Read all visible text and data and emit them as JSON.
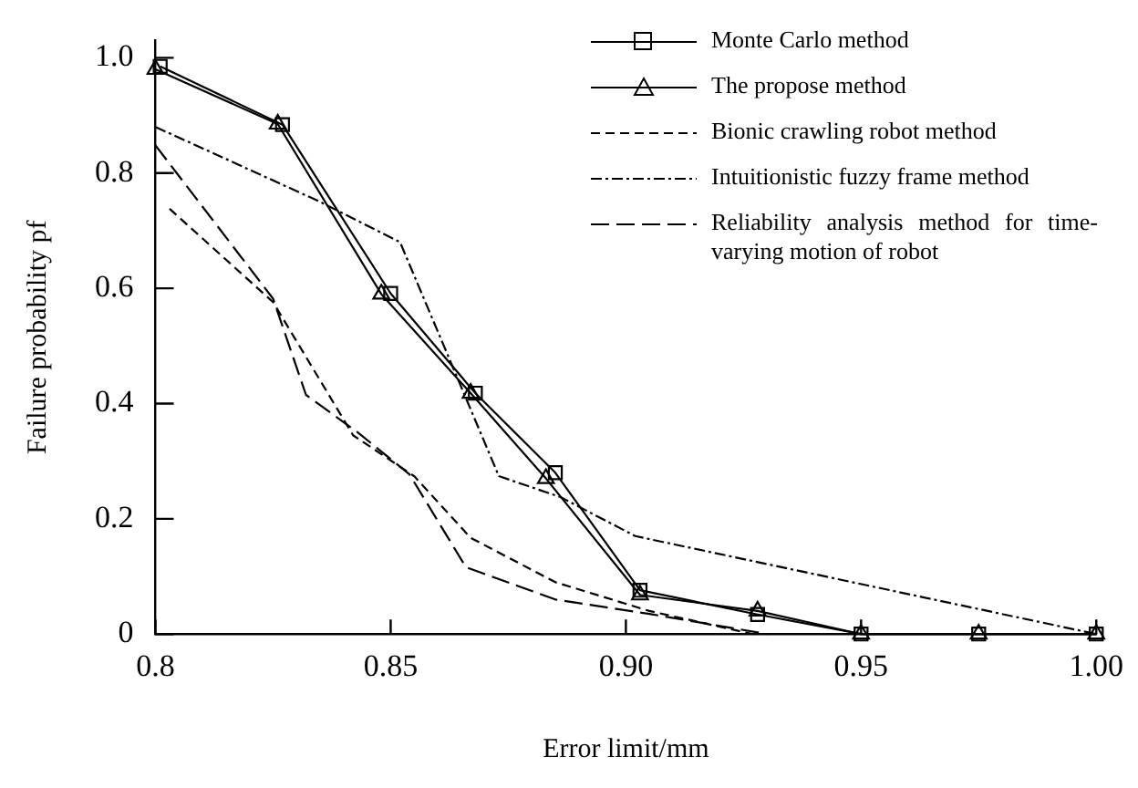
{
  "chart_data": {
    "type": "line",
    "xlabel": "Error limit/mm",
    "ylabel": "Failure probability pf",
    "xlim": [
      0.8,
      1.0
    ],
    "xticks": [
      0.8,
      0.85,
      {
        "value": 0.9,
        "label": "0.90"
      },
      0.95,
      {
        "value": 1.0,
        "label": "1.00"
      }
    ],
    "ylim": [
      0,
      1.03
    ],
    "yticks": [
      0,
      0.2,
      0.4,
      0.6,
      0.8,
      {
        "value": 1.0,
        "label": "1.0"
      }
    ],
    "grid": false,
    "legend": "top right",
    "series": [
      {
        "name": "Monte Carlo method",
        "color": "#000000",
        "marker": "square",
        "line_style": "solid",
        "x": [
          0.801,
          0.827,
          0.85,
          0.868,
          0.885,
          0.903,
          0.928,
          0.95,
          0.975,
          1.0
        ],
        "values": [
          0.985,
          0.884,
          0.591,
          0.418,
          0.28,
          0.076,
          0.034,
          0,
          0,
          0
        ]
      },
      {
        "name": "The propose method",
        "color": "#000000",
        "marker": "triangle",
        "line_style": "solid",
        "x": [
          0.8,
          0.826,
          0.848,
          0.867,
          0.883,
          0.903,
          0.928,
          0.95,
          0.975,
          1.0
        ],
        "values": [
          0.98,
          0.885,
          0.59,
          0.418,
          0.27,
          0.068,
          0.04,
          0,
          0,
          0
        ]
      },
      {
        "name": "Bionic crawling robot method",
        "color": "#000000",
        "marker": "none",
        "line_style": "dashed",
        "x": [
          0.803,
          0.825,
          0.842,
          0.855,
          0.867,
          0.885,
          0.905,
          0.927
        ],
        "values": [
          0.738,
          0.576,
          0.345,
          0.274,
          0.167,
          0.09,
          0.04,
          0
        ]
      },
      {
        "name": "Intuitionistic fuzzy frame method",
        "color": "#000000",
        "marker": "none",
        "line_style": "dashdot",
        "x": [
          0.8,
          0.835,
          0.852,
          0.873,
          0.886,
          0.902,
          1.0
        ],
        "values": [
          0.88,
          0.75,
          0.68,
          0.274,
          0.238,
          0.17,
          0
        ]
      },
      {
        "name": "Reliability analysis method for time-varying motion of robot",
        "color": "#000000",
        "marker": "none",
        "line_style": "longdash",
        "x": [
          0.8,
          0.825,
          0.832,
          0.843,
          0.854,
          0.866,
          0.885,
          0.905,
          0.93
        ],
        "values": [
          0.848,
          0.582,
          0.415,
          0.35,
          0.277,
          0.116,
          0.06,
          0.035,
          0
        ]
      }
    ]
  }
}
